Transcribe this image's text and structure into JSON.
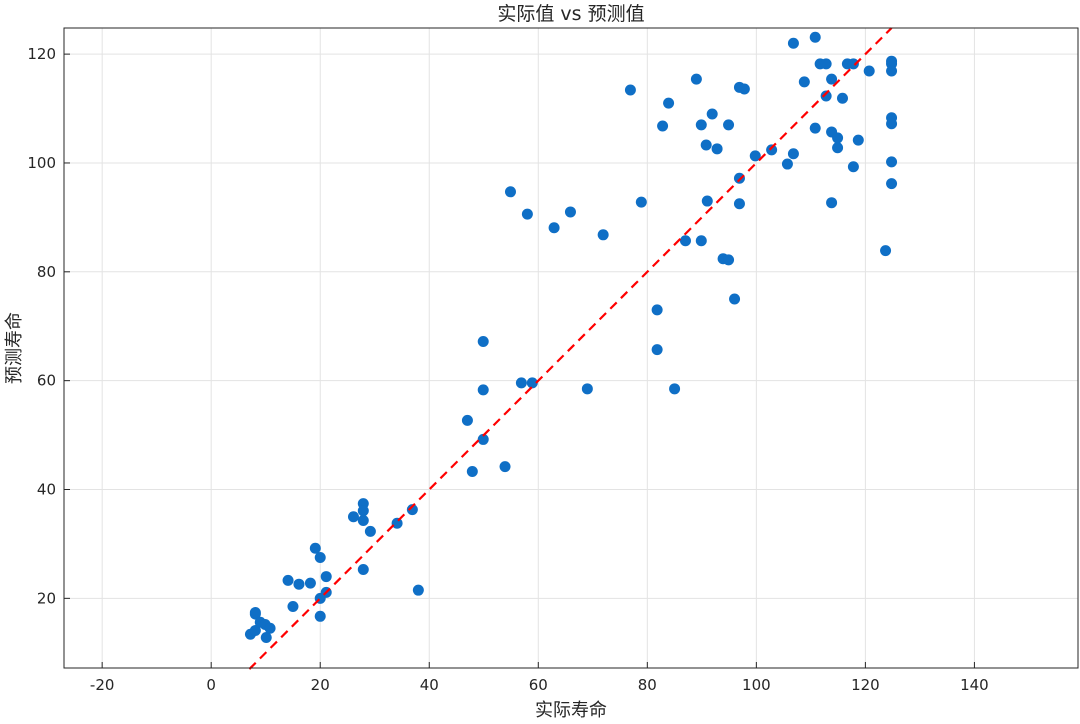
{
  "chart_data": {
    "type": "scatter",
    "title": "实际值 vs 预测值",
    "xlabel": "实际寿命",
    "ylabel": "预测寿命",
    "xlim": [
      -27,
      159
    ],
    "ylim": [
      7.2,
      124.8
    ],
    "xticks": [
      -20,
      0,
      20,
      40,
      60,
      80,
      100,
      120,
      140
    ],
    "yticks": [
      20,
      40,
      60,
      80,
      100,
      120
    ],
    "grid": true,
    "colors": {
      "points": "#0f6fc6",
      "reference_line": "#ff0000"
    },
    "reference_line": {
      "style": "dashed",
      "equation": "y = x",
      "x": [
        7,
        124.8
      ]
    },
    "points": [
      [
        7.2,
        13.4
      ],
      [
        8.1,
        14.1
      ],
      [
        8.1,
        17.4
      ],
      [
        8.1,
        17.1
      ],
      [
        9.0,
        15.6
      ],
      [
        9.9,
        15.2
      ],
      [
        10.1,
        12.8
      ],
      [
        10.8,
        14.5
      ],
      [
        14.1,
        23.3
      ],
      [
        15.0,
        18.5
      ],
      [
        16.1,
        22.6
      ],
      [
        18.2,
        22.8
      ],
      [
        19.1,
        29.2
      ],
      [
        20.0,
        27.5
      ],
      [
        20.0,
        20.0
      ],
      [
        20.0,
        16.7
      ],
      [
        21.1,
        24.0
      ],
      [
        21.1,
        21.1
      ],
      [
        26.1,
        35.0
      ],
      [
        27.9,
        37.4
      ],
      [
        27.9,
        36.1
      ],
      [
        27.9,
        34.3
      ],
      [
        27.9,
        25.3
      ],
      [
        29.2,
        32.3
      ],
      [
        34.1,
        33.8
      ],
      [
        36.9,
        36.3
      ],
      [
        38.0,
        21.5
      ],
      [
        47.0,
        52.7
      ],
      [
        47.9,
        43.3
      ],
      [
        49.9,
        67.2
      ],
      [
        49.9,
        58.3
      ],
      [
        49.9,
        49.2
      ],
      [
        53.9,
        44.2
      ],
      [
        54.9,
        94.7
      ],
      [
        56.9,
        59.6
      ],
      [
        58.0,
        90.6
      ],
      [
        58.9,
        59.6
      ],
      [
        62.9,
        88.1
      ],
      [
        65.9,
        91.0
      ],
      [
        69.0,
        58.5
      ],
      [
        71.9,
        86.8
      ],
      [
        76.9,
        113.4
      ],
      [
        78.9,
        92.8
      ],
      [
        81.8,
        73.0
      ],
      [
        81.8,
        65.7
      ],
      [
        82.8,
        106.8
      ],
      [
        83.9,
        111.0
      ],
      [
        85.0,
        58.5
      ],
      [
        87.0,
        85.7
      ],
      [
        89.0,
        115.4
      ],
      [
        89.9,
        85.7
      ],
      [
        89.9,
        107.0
      ],
      [
        90.8,
        103.3
      ],
      [
        91.0,
        93.0
      ],
      [
        91.9,
        109.0
      ],
      [
        92.8,
        102.6
      ],
      [
        93.9,
        82.4
      ],
      [
        94.9,
        82.2
      ],
      [
        94.9,
        107.0
      ],
      [
        96.0,
        75.0
      ],
      [
        96.9,
        113.9
      ],
      [
        96.9,
        97.2
      ],
      [
        96.9,
        92.5
      ],
      [
        97.8,
        113.6
      ],
      [
        99.8,
        101.3
      ],
      [
        102.8,
        102.4
      ],
      [
        105.7,
        99.8
      ],
      [
        106.8,
        122.0
      ],
      [
        106.8,
        101.7
      ],
      [
        108.8,
        114.9
      ],
      [
        110.8,
        123.1
      ],
      [
        110.8,
        106.4
      ],
      [
        111.7,
        118.2
      ],
      [
        112.8,
        118.2
      ],
      [
        112.8,
        112.3
      ],
      [
        113.8,
        115.4
      ],
      [
        113.8,
        105.7
      ],
      [
        113.8,
        92.7
      ],
      [
        114.9,
        104.6
      ],
      [
        114.9,
        102.8
      ],
      [
        115.8,
        111.9
      ],
      [
        116.7,
        118.2
      ],
      [
        117.8,
        118.2
      ],
      [
        117.8,
        99.3
      ],
      [
        118.7,
        104.2
      ],
      [
        120.7,
        116.9
      ],
      [
        123.7,
        83.9
      ],
      [
        124.8,
        118.7
      ],
      [
        124.8,
        118.2
      ],
      [
        124.8,
        116.9
      ],
      [
        124.8,
        108.3
      ],
      [
        124.8,
        107.2
      ],
      [
        124.8,
        100.2
      ],
      [
        124.8,
        96.2
      ]
    ]
  }
}
